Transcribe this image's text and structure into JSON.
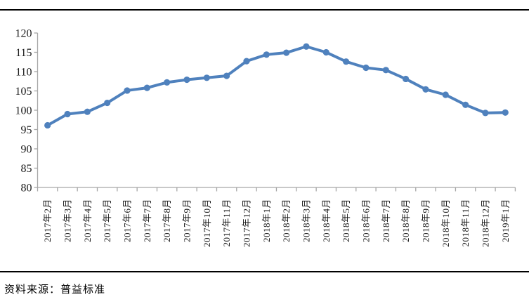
{
  "chart_data": {
    "type": "line",
    "title": "",
    "categories": [
      "2017年2月",
      "2017年3月",
      "2017年4月",
      "2017年5月",
      "2017年6月",
      "2017年7月",
      "2017年8月",
      "2017年9月",
      "2017年10月",
      "2017年11月",
      "2017年12月",
      "2018年1月",
      "2018年2月",
      "2018年3月",
      "2018年4月",
      "2018年5月",
      "2018年6月",
      "2018年7月",
      "2018年8月",
      "2018年9月",
      "2018年10月",
      "2018年11月",
      "2018年12月",
      "2019年1月"
    ],
    "values": [
      96.1,
      99.0,
      99.6,
      101.9,
      105.1,
      105.8,
      107.2,
      107.9,
      108.4,
      108.9,
      112.7,
      114.4,
      114.9,
      116.5,
      115.0,
      112.6,
      111.0,
      110.4,
      108.1,
      105.4,
      104.0,
      101.4,
      99.3,
      99.4
    ],
    "ylim": [
      80,
      120
    ],
    "yticks": [
      80,
      85,
      90,
      95,
      100,
      105,
      110,
      115,
      120
    ],
    "grid": "off",
    "legend": "none",
    "line_color": "#4f81bd",
    "marker": "circle",
    "axis_color": "#a6a6a6",
    "label_color": "#1a1a1a"
  },
  "source_note": "资料来源：普益标准"
}
